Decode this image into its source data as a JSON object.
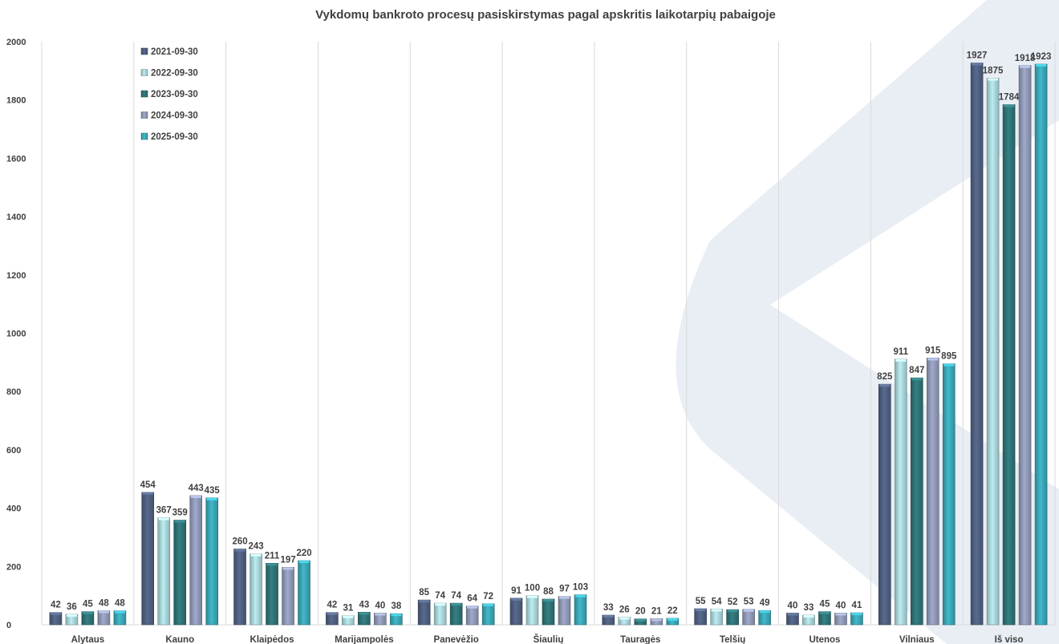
{
  "colors": {
    "watermark": "#e9eef5",
    "gridline": "#d9d9d9",
    "text": "#404040"
  },
  "chart_data": {
    "type": "bar",
    "title": "Vykdomų bankroto procesų pasiskirstymas pagal apskritis laikotarpių pabaigoje",
    "xlabel": "",
    "ylabel": "",
    "ylim": [
      0,
      2000
    ],
    "yticks": [
      "0",
      "200",
      "400",
      "600",
      "800",
      "1000",
      "1200",
      "1400",
      "1600",
      "1800",
      "2000"
    ],
    "grid": "vertical separators between categories",
    "legend_position": "top-left",
    "categories": [
      "Alytaus",
      "Kauno",
      "Klaipėdos",
      "Marijampolės",
      "Panevėžio",
      "Šiaulių",
      "Tauragės",
      "Telšių",
      "Utenos",
      "Vilniaus",
      "Iš viso"
    ],
    "series": [
      {
        "name": "2021-09-30",
        "color": "#4f5f7f",
        "values": [
          42,
          454,
          260,
          42,
          85,
          91,
          33,
          55,
          40,
          825,
          1927
        ]
      },
      {
        "name": "2022-09-30",
        "color": "#a8d4d8",
        "values": [
          36,
          367,
          243,
          31,
          74,
          100,
          26,
          54,
          33,
          911,
          1875
        ]
      },
      {
        "name": "2023-09-30",
        "color": "#2f7276",
        "values": [
          45,
          359,
          211,
          43,
          74,
          88,
          20,
          52,
          45,
          847,
          1784
        ]
      },
      {
        "name": "2024-09-30",
        "color": "#8f98b5",
        "values": [
          48,
          443,
          197,
          40,
          64,
          97,
          21,
          53,
          40,
          915,
          1918
        ]
      },
      {
        "name": "2025-09-30",
        "color": "#3aa5b5",
        "values": [
          48,
          435,
          220,
          38,
          72,
          103,
          22,
          49,
          41,
          895,
          1923
        ]
      }
    ]
  }
}
